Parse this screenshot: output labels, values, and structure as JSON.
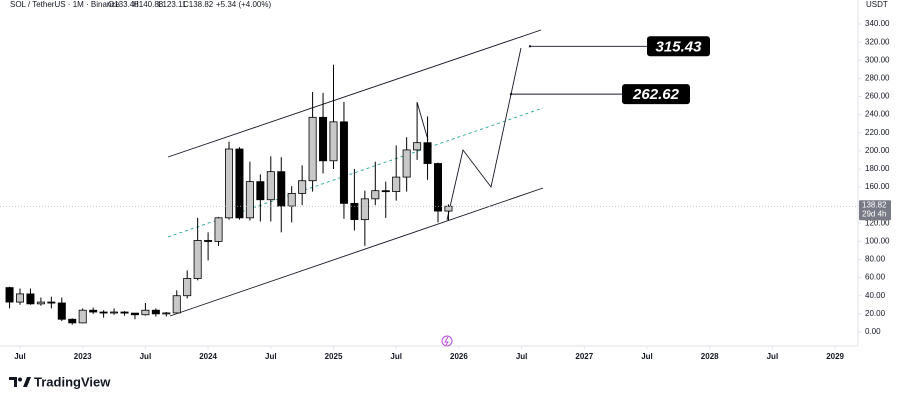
{
  "chart_data": {
    "type": "candlestick",
    "title": "SOL / TetherUS · 1M · Binance",
    "ohlc_text": [
      "O133.48",
      "H140.88",
      "L123.11",
      "C138.82",
      "+5.34 (+4.00%)"
    ],
    "currency": "USDT",
    "last_price": {
      "value": 138.82,
      "label": "138.82"
    },
    "countdown": "29d 4h",
    "brand": "TradingView",
    "up_color": "#c8c8c8",
    "down_color": "#000000",
    "x": [
      "2022-06",
      "2022-07",
      "2022-08",
      "2022-09",
      "2022-10",
      "2022-11",
      "2022-12",
      "2023-01",
      "2023-02",
      "2023-03",
      "2023-04",
      "2023-05",
      "2023-06",
      "2023-07",
      "2023-08",
      "2023-09",
      "2023-10",
      "2023-11",
      "2023-12",
      "2024-01",
      "2024-02",
      "2024-03",
      "2024-04",
      "2024-05",
      "2024-06",
      "2024-07",
      "2024-08",
      "2024-09",
      "2024-10",
      "2024-11",
      "2024-12",
      "2025-01",
      "2025-02",
      "2025-03",
      "2025-04",
      "2025-05",
      "2025-06",
      "2025-07",
      "2025-08",
      "2025-09",
      "2025-10",
      "2025-11",
      "2025-12"
    ],
    "open": [
      49,
      33,
      42,
      31,
      33,
      32,
      14,
      10,
      24,
      22,
      21,
      22,
      20.8,
      19,
      24,
      20,
      21,
      40,
      59,
      101,
      100,
      126,
      202,
      126,
      166,
      146,
      177,
      139,
      153,
      167,
      237,
      189,
      232,
      142,
      124,
      147,
      156,
      155,
      171,
      201,
      209,
      186,
      133.48
    ],
    "high": [
      50,
      48,
      48,
      38,
      39,
      38,
      15,
      26,
      27,
      24,
      26,
      23,
      21,
      32,
      26,
      22,
      46,
      68,
      126,
      110,
      127,
      210,
      204,
      188,
      174,
      194,
      193,
      161,
      184,
      265,
      264,
      295,
      254,
      180,
      156,
      188,
      166,
      206,
      215,
      253,
      238,
      187,
      140.88
    ],
    "low": [
      26,
      30,
      30,
      29,
      26,
      12,
      8,
      9.6,
      20,
      15.8,
      19,
      18,
      14,
      18,
      17,
      17,
      21,
      37,
      57,
      79,
      95,
      124,
      124,
      123,
      122,
      122,
      110,
      121,
      140,
      155,
      175,
      180,
      125,
      112,
      95,
      140,
      126,
      145,
      155,
      190,
      168,
      121,
      123.11
    ],
    "close": [
      33,
      42,
      31,
      33,
      32,
      14,
      10,
      24,
      22,
      21,
      22,
      20.8,
      19,
      24,
      20,
      21,
      40,
      59,
      101,
      100,
      126,
      202,
      126,
      166,
      146,
      177,
      139,
      153,
      167,
      237,
      189,
      232,
      142,
      124,
      147,
      156,
      155,
      171,
      201,
      209,
      186,
      133.48,
      138.82
    ],
    "ylim": [
      -10,
      350
    ],
    "yticks": [
      {
        "value": 0,
        "label": "0.00"
      },
      {
        "value": 20,
        "label": "20.00"
      },
      {
        "value": 40,
        "label": "40.00"
      },
      {
        "value": 60,
        "label": "60.00"
      },
      {
        "value": 80,
        "label": "80.00"
      },
      {
        "value": 100,
        "label": "100.00"
      },
      {
        "value": 120,
        "label": "120.00"
      },
      {
        "value": 140,
        "label": "140.00"
      },
      {
        "value": 160,
        "label": "160.00"
      },
      {
        "value": 180,
        "label": "180.00"
      },
      {
        "value": 200,
        "label": "200.00"
      },
      {
        "value": 220,
        "label": "220.00"
      },
      {
        "value": 240,
        "label": "240.00"
      },
      {
        "value": 260,
        "label": "260.00"
      },
      {
        "value": 280,
        "label": "280.00"
      },
      {
        "value": 300,
        "label": "300.00"
      },
      {
        "value": 320,
        "label": "320.00"
      },
      {
        "value": 340,
        "label": "340.00"
      }
    ],
    "xticks": [
      {
        "value": "2022-07",
        "label": "Jul"
      },
      {
        "value": "2023-01",
        "label": "2023"
      },
      {
        "value": "2023-07",
        "label": "Jul"
      },
      {
        "value": "2024-01",
        "label": "2024"
      },
      {
        "value": "2024-07",
        "label": "Jul"
      },
      {
        "value": "2025-01",
        "label": "2025"
      },
      {
        "value": "2025-07",
        "label": "Jul"
      },
      {
        "value": "2026-01",
        "label": "2026"
      },
      {
        "value": "2026-07",
        "label": "Jul"
      },
      {
        "value": "2027-01",
        "label": "2027"
      },
      {
        "value": "2027-07",
        "label": "Jul"
      },
      {
        "value": "2028-01",
        "label": "2028"
      },
      {
        "value": "2028-07",
        "label": "Jul"
      },
      {
        "value": "2029-01",
        "label": "2029"
      }
    ],
    "annotations": [
      315.43,
      262.62
    ]
  }
}
